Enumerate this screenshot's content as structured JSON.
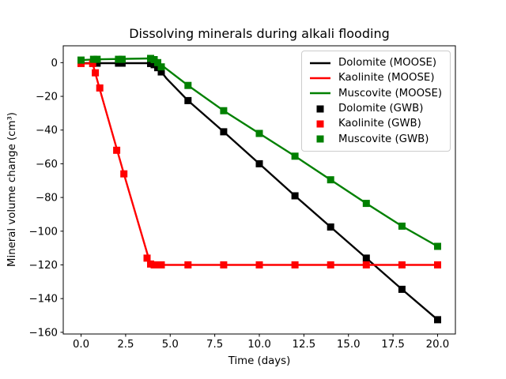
{
  "figure": {
    "background": "#ffffff",
    "window_size": "640x480"
  },
  "chart_data": {
    "type": "line",
    "title": "Dissolving minerals during alkali flooding",
    "xlabel": "Time (days)",
    "ylabel": "Mineral volume change (cm³)",
    "xlim": [
      -1,
      21
    ],
    "ylim": [
      -161,
      10
    ],
    "grid": false,
    "x_axis": {
      "tick_values": [
        0,
        2.5,
        5,
        7.5,
        10,
        12.5,
        15,
        17.5,
        20
      ],
      "tick_labels": [
        "0.0",
        "2.5",
        "5.0",
        "7.5",
        "10.0",
        "12.5",
        "15.0",
        "17.5",
        "20.0"
      ]
    },
    "y_axis": {
      "tick_values": [
        0,
        -20,
        -40,
        -60,
        -80,
        -100,
        -120,
        -140,
        -160
      ],
      "tick_labels": [
        "0",
        "−20",
        "−40",
        "−60",
        "−80",
        "−100",
        "−120",
        "−140",
        "−160"
      ]
    },
    "legend": {
      "position": "upper right",
      "border_color": "#cccccc",
      "background": "#ffffff"
    },
    "series": [
      {
        "name": "Dolomite (MOOSE)",
        "type": "line",
        "color": "#000000",
        "points": [
          [
            0,
            -0.3
          ],
          [
            3.8,
            -0.3
          ],
          [
            4.1,
            -1.2
          ],
          [
            4.4,
            -4
          ],
          [
            4.8,
            -9.5
          ],
          [
            6,
            -22.5
          ],
          [
            8,
            -41
          ],
          [
            10,
            -60
          ],
          [
            12,
            -79
          ],
          [
            14,
            -97.5
          ],
          [
            16,
            -116
          ],
          [
            18,
            -134.5
          ],
          [
            20,
            -152.5
          ]
        ]
      },
      {
        "name": "Kaolinite (MOOSE)",
        "type": "line",
        "color": "#ff0000",
        "points": [
          [
            0,
            -0.5
          ],
          [
            0.65,
            -0.5
          ],
          [
            1,
            -14
          ],
          [
            2,
            -51
          ],
          [
            2.4,
            -66
          ],
          [
            3.9,
            -120
          ],
          [
            20,
            -120
          ]
        ]
      },
      {
        "name": "Muscovite (MOOSE)",
        "type": "line",
        "color": "#008000",
        "points": [
          [
            0,
            1.5
          ],
          [
            1,
            2
          ],
          [
            3.9,
            2.5
          ],
          [
            4.2,
            1.5
          ],
          [
            4.7,
            -3
          ],
          [
            6,
            -13.5
          ],
          [
            8,
            -28.5
          ],
          [
            10,
            -42
          ],
          [
            12,
            -55.5
          ],
          [
            14,
            -69.5
          ],
          [
            16,
            -83.5
          ],
          [
            18,
            -97
          ],
          [
            20,
            -109
          ]
        ]
      },
      {
        "name": "Dolomite (GWB)",
        "type": "scatter",
        "marker": "square",
        "color": "#000000",
        "points": [
          [
            0,
            -0.3
          ],
          [
            0.7,
            -0.3
          ],
          [
            0.9,
            -0.3
          ],
          [
            2.1,
            -0.3
          ],
          [
            2.3,
            -0.3
          ],
          [
            3.9,
            -0.5
          ],
          [
            4.1,
            -1.2
          ],
          [
            4.3,
            -3
          ],
          [
            4.5,
            -5.5
          ],
          [
            6,
            -22.5
          ],
          [
            8,
            -41
          ],
          [
            10,
            -60
          ],
          [
            12,
            -79
          ],
          [
            14,
            -97.5
          ],
          [
            16,
            -116
          ],
          [
            18,
            -134.5
          ],
          [
            20,
            -152.5
          ]
        ]
      },
      {
        "name": "Kaolinite (GWB)",
        "type": "scatter",
        "marker": "square",
        "color": "#ff0000",
        "points": [
          [
            0,
            -0.5
          ],
          [
            0.65,
            -0.5
          ],
          [
            0.8,
            -6
          ],
          [
            1.05,
            -15
          ],
          [
            2,
            -52
          ],
          [
            2.4,
            -66
          ],
          [
            3.7,
            -116
          ],
          [
            3.9,
            -119.5
          ],
          [
            4.1,
            -120
          ],
          [
            4.3,
            -120
          ],
          [
            4.5,
            -120
          ],
          [
            6,
            -120
          ],
          [
            8,
            -120
          ],
          [
            10,
            -120
          ],
          [
            12,
            -120
          ],
          [
            14,
            -120
          ],
          [
            16,
            -120
          ],
          [
            18,
            -120
          ],
          [
            20,
            -120
          ]
        ]
      },
      {
        "name": "Muscovite (GWB)",
        "type": "scatter",
        "marker": "square",
        "color": "#008000",
        "points": [
          [
            0,
            1.5
          ],
          [
            0.7,
            2
          ],
          [
            0.9,
            2
          ],
          [
            2.1,
            2
          ],
          [
            2.3,
            2
          ],
          [
            3.9,
            2.5
          ],
          [
            4.1,
            1.8
          ],
          [
            4.3,
            0
          ],
          [
            4.5,
            -2.5
          ],
          [
            6,
            -13.5
          ],
          [
            8,
            -28.5
          ],
          [
            10,
            -42
          ],
          [
            12,
            -55.5
          ],
          [
            14,
            -69.5
          ],
          [
            16,
            -83.5
          ],
          [
            18,
            -97
          ],
          [
            20,
            -109
          ]
        ]
      }
    ]
  }
}
